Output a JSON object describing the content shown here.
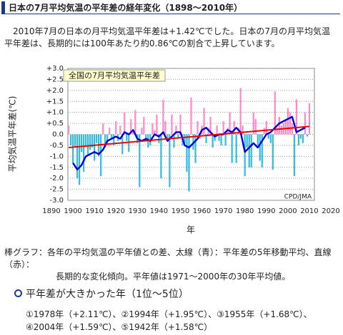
{
  "header": {
    "title": "日本の7月平均気温の平年差の経年変化（1898～2010年）"
  },
  "intro": "2010年7月の日本の月平均気温平年差は+1.42℃でした。日本の7月の月平均気温平年差は、長期的には100年あたり約0.86℃の割合で上昇しています。",
  "chart_data": {
    "type": "bar",
    "title": "全国の7月平均気温平年差",
    "source": "CPD/JMA",
    "x_label": "年",
    "y_label": "平均気温平年差(℃)",
    "grid": true,
    "xlim": [
      1890,
      2020
    ],
    "xticks": [
      1890,
      1900,
      1910,
      1920,
      1930,
      1940,
      1950,
      1960,
      1970,
      1980,
      1990,
      2000,
      2010,
      2020
    ],
    "ylim": [
      -3,
      3
    ],
    "yticks": [
      {
        "value": 3,
        "label": "+3.0"
      },
      {
        "value": 2.5,
        "label": "+2.5"
      },
      {
        "value": 2,
        "label": "+2.0"
      },
      {
        "value": 1.5,
        "label": "+1.5"
      },
      {
        "value": 1,
        "label": "+1.0"
      },
      {
        "value": 0.5,
        "label": "+0.5"
      },
      {
        "value": 0,
        "label": "0.0"
      },
      {
        "value": -0.5,
        "label": "-0.5"
      },
      {
        "value": -1,
        "label": "-1.0"
      },
      {
        "value": -1.5,
        "label": "-1.5"
      },
      {
        "value": -2,
        "label": "-2.0"
      },
      {
        "value": -2.5,
        "label": "-2.5"
      },
      {
        "value": -3,
        "label": "-3.0"
      }
    ],
    "bars": {
      "positive_color": "#ff88c8",
      "negative_color": "#33bbdd",
      "x": [
        1898,
        1899,
        1900,
        1901,
        1902,
        1903,
        1904,
        1905,
        1906,
        1907,
        1908,
        1909,
        1910,
        1911,
        1912,
        1913,
        1914,
        1915,
        1916,
        1917,
        1918,
        1919,
        1920,
        1921,
        1922,
        1923,
        1924,
        1925,
        1926,
        1927,
        1928,
        1929,
        1930,
        1931,
        1932,
        1933,
        1934,
        1935,
        1936,
        1937,
        1938,
        1939,
        1940,
        1941,
        1942,
        1943,
        1944,
        1945,
        1946,
        1947,
        1948,
        1949,
        1950,
        1951,
        1952,
        1953,
        1954,
        1955,
        1956,
        1957,
        1958,
        1959,
        1960,
        1961,
        1962,
        1963,
        1964,
        1965,
        1966,
        1967,
        1968,
        1969,
        1970,
        1971,
        1972,
        1973,
        1974,
        1975,
        1976,
        1977,
        1978,
        1979,
        1980,
        1981,
        1982,
        1983,
        1984,
        1985,
        1986,
        1987,
        1988,
        1989,
        1990,
        1991,
        1992,
        1993,
        1994,
        1995,
        1996,
        1997,
        1998,
        1999,
        2000,
        2001,
        2002,
        2003,
        2004,
        2005,
        2006,
        2007,
        2008,
        2009,
        2010
      ],
      "values": [
        0.4,
        -0.5,
        -1.3,
        -0.6,
        -2.0,
        -2.3,
        -0.8,
        -1.7,
        -0.5,
        -0.9,
        -0.7,
        -0.6,
        -1.2,
        -0.4,
        -1.0,
        -1.9,
        0.5,
        -0.6,
        -0.4,
        0.3,
        -0.2,
        -0.5,
        0.6,
        -0.3,
        0.4,
        -0.9,
        1.0,
        -0.3,
        -0.8,
        0.7,
        0.2,
        1.1,
        -0.4,
        -2.4,
        0.3,
        0.8,
        -0.3,
        -0.6,
        -0.5,
        0.5,
        0.2,
        0.9,
        -0.4,
        -2.0,
        1.58,
        0.6,
        -0.3,
        -2.4,
        0.9,
        -0.6,
        0.4,
        -0.2,
        0.9,
        -0.5,
        -0.4,
        -1.7,
        -2.6,
        1.68,
        -0.7,
        -1.3,
        0.6,
        -0.2,
        0.4,
        1.2,
        -0.4,
        0.3,
        0.8,
        -0.6,
        -0.3,
        0.4,
        -0.3,
        -0.5,
        0.6,
        -0.5,
        0.3,
        1.0,
        -1.3,
        0.6,
        -1.3,
        0.3,
        2.11,
        0.4,
        -1.9,
        -0.6,
        -1.5,
        -1.5,
        1.0,
        0.7,
        -0.5,
        -1.2,
        -1.5,
        0.3,
        0.6,
        -0.2,
        -0.4,
        -1.6,
        1.95,
        0.3,
        0.8,
        0.4,
        0.5,
        0.6,
        1.2,
        1.0,
        0.5,
        -1.9,
        1.59,
        -0.5,
        -0.2,
        -0.4,
        1.0,
        -0.1,
        1.42
      ]
    },
    "moving_average": {
      "color": "#0000dd",
      "x": [
        1900,
        1902,
        1904,
        1906,
        1908,
        1910,
        1912,
        1914,
        1916,
        1918,
        1920,
        1922,
        1924,
        1926,
        1928,
        1930,
        1932,
        1934,
        1936,
        1938,
        1940,
        1942,
        1944,
        1946,
        1948,
        1950,
        1952,
        1954,
        1956,
        1958,
        1960,
        1962,
        1964,
        1966,
        1968,
        1970,
        1972,
        1974,
        1976,
        1978,
        1980,
        1982,
        1984,
        1986,
        1988,
        1990,
        1992,
        1994,
        1996,
        1998,
        2000,
        2002,
        2004,
        2006,
        2008
      ],
      "values": [
        -1.3,
        -1.6,
        -1.4,
        -1.0,
        -0.9,
        -0.8,
        -0.9,
        -0.7,
        -0.3,
        -0.2,
        -0.1,
        -0.2,
        0.1,
        0.0,
        0.2,
        -0.2,
        -0.3,
        -0.2,
        -0.3,
        0.0,
        -0.1,
        0.1,
        -0.3,
        -0.1,
        0.1,
        0.1,
        -0.5,
        -0.6,
        -0.4,
        -0.2,
        0.2,
        0.3,
        0.1,
        -0.1,
        0.0,
        0.0,
        0.2,
        0.1,
        0.3,
        0.1,
        -0.8,
        -0.6,
        -0.4,
        -0.6,
        -0.3,
        0.0,
        0.1,
        0.3,
        0.5,
        0.6,
        0.7,
        0.8,
        0.1,
        0.2,
        0.3
      ]
    },
    "trend": {
      "color": "#ee0000",
      "x": [
        1898,
        2010
      ],
      "values": [
        -0.6,
        0.36
      ]
    }
  },
  "caption": {
    "lines": [
      "棒グラフ：各年の平均気温の平年値との差、太線（青）：平年差の5年移動平均、直線（赤）：",
      "長期的な変化傾向。平年値は1971～2000年の30年平均値。"
    ]
  },
  "ranking": {
    "title": "平年差が大きかった年（1位～5位）",
    "text": "①1978年（+2.11℃）、②1994年（+1.95℃）、③1955年（+1.68℃）、④2004年（+1.59℃）、⑤1942年（+1.58℃）"
  }
}
